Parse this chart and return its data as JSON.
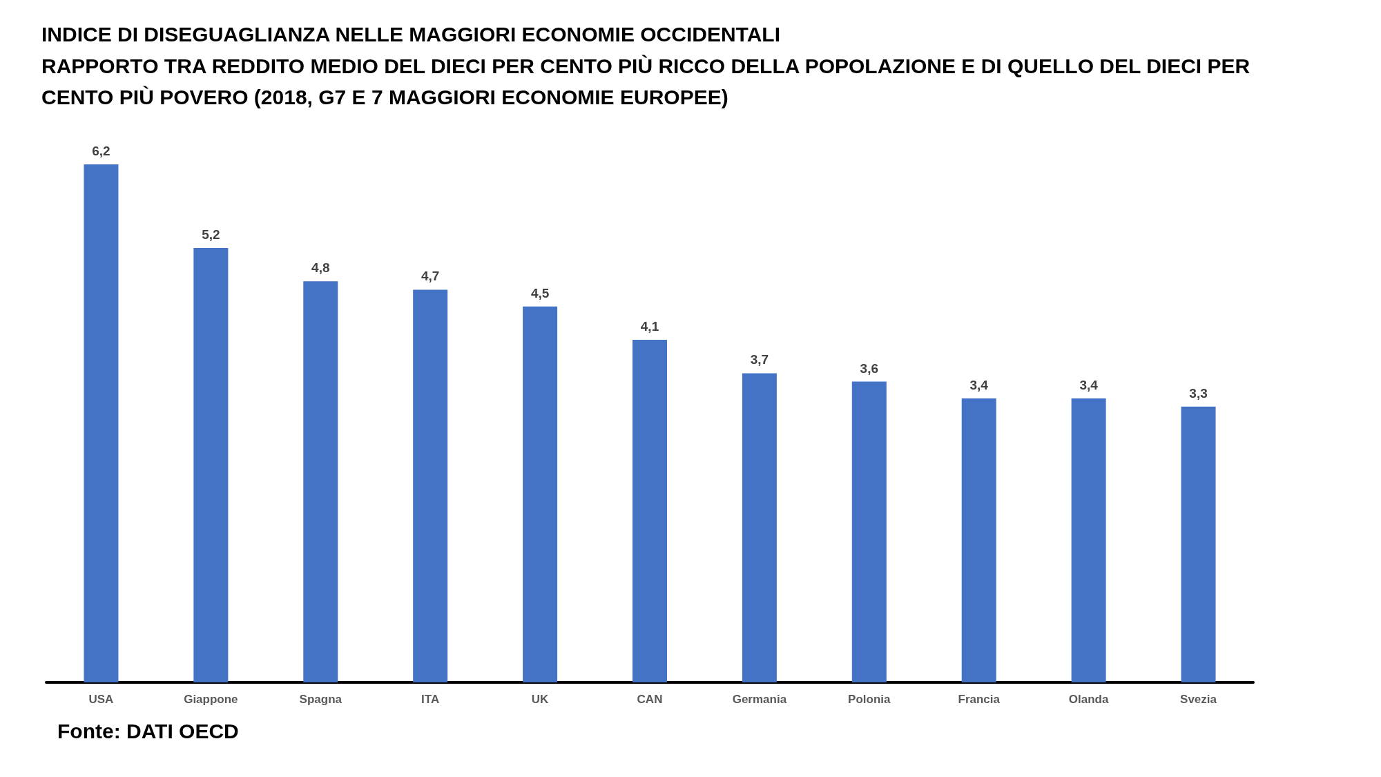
{
  "chart_data": {
    "type": "bar",
    "title": "INDICE DI DISEGUAGLIANZA NELLE MAGGIORI ECONOMIE OCCIDENTALI",
    "subtitle": "RAPPORTO TRA REDDITO MEDIO DEL DIECI PER CENTO PIÙ RICCO DELLA POPOLAZIONE E DI QUELLO DEL DIECI PER CENTO PIÙ POVERO (2018, G7 E 7 MAGGIORI ECONOMIE EUROPEE)",
    "categories": [
      "USA",
      "Giappone",
      "Spagna",
      "ITA",
      "UK",
      "CAN",
      "Germania",
      "Polonia",
      "Francia",
      "Olanda",
      "Svezia"
    ],
    "values": [
      6.2,
      5.2,
      4.8,
      4.7,
      4.5,
      4.1,
      3.7,
      3.6,
      3.4,
      3.4,
      3.3
    ],
    "value_labels": [
      "6,2",
      "5,2",
      "4,8",
      "4,7",
      "4,5",
      "4,1",
      "3,7",
      "3,6",
      "3,4",
      "3,4",
      "3,3"
    ],
    "color": "#4472c4",
    "annotations": [
      "Fonte: DATI OECD"
    ]
  }
}
